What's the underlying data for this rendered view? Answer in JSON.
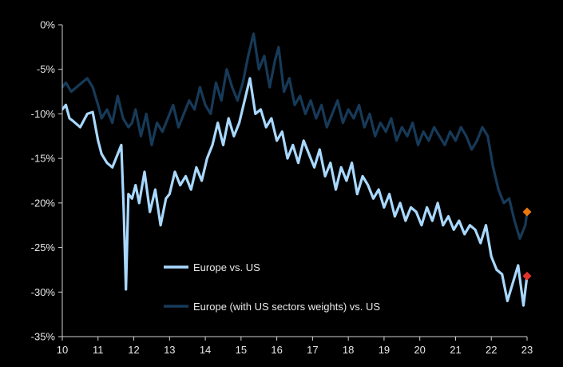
{
  "chart_data": {
    "type": "line",
    "title": "",
    "xlabel": "",
    "ylabel": "",
    "ylim": [
      -35,
      0
    ],
    "yticks": [
      0,
      -5,
      -10,
      -15,
      -20,
      -25,
      -30,
      -35
    ],
    "ytick_labels": [
      "0%",
      "-5%",
      "-10%",
      "-15%",
      "-20%",
      "-25%",
      "-30%",
      "-35%"
    ],
    "xlim": [
      10,
      23
    ],
    "xticks": [
      10,
      11,
      12,
      13,
      14,
      15,
      16,
      17,
      18,
      19,
      20,
      21,
      22,
      23
    ],
    "xtick_labels": [
      "10",
      "11",
      "12",
      "13",
      "14",
      "15",
      "16",
      "17",
      "18",
      "19",
      "20",
      "21",
      "22",
      "23"
    ],
    "grid": false,
    "legend_position": "bottom-center",
    "series": [
      {
        "name": "Europe vs. US",
        "color": "#a9d8ff",
        "x": [
          10.0,
          10.1,
          10.2,
          10.3,
          10.5,
          10.7,
          10.85,
          11.0,
          11.1,
          11.25,
          11.4,
          11.55,
          11.65,
          11.72,
          11.78,
          11.85,
          11.95,
          12.05,
          12.15,
          12.3,
          12.45,
          12.6,
          12.75,
          12.9,
          13.0,
          13.15,
          13.3,
          13.45,
          13.6,
          13.75,
          13.9,
          14.05,
          14.2,
          14.35,
          14.5,
          14.65,
          14.8,
          14.95,
          15.1,
          15.25,
          15.4,
          15.55,
          15.7,
          15.85,
          16.0,
          16.15,
          16.3,
          16.45,
          16.6,
          16.75,
          16.9,
          17.05,
          17.2,
          17.35,
          17.5,
          17.65,
          17.8,
          17.95,
          18.1,
          18.25,
          18.4,
          18.55,
          18.7,
          18.85,
          19.0,
          19.15,
          19.3,
          19.45,
          19.6,
          19.75,
          19.9,
          20.05,
          20.2,
          20.35,
          20.5,
          20.65,
          20.8,
          20.95,
          21.1,
          21.25,
          21.4,
          21.55,
          21.7,
          21.85,
          22.0,
          22.15,
          22.3,
          22.45,
          22.6,
          22.75,
          22.9,
          23.0
        ],
        "values": [
          -9.5,
          -9.0,
          -10.5,
          -10.8,
          -11.5,
          -10.0,
          -9.8,
          -13.0,
          -14.5,
          -15.5,
          -16.0,
          -14.5,
          -13.5,
          -21.0,
          -29.7,
          -19.0,
          -19.5,
          -18.0,
          -20.0,
          -16.5,
          -21.0,
          -18.5,
          -22.5,
          -19.5,
          -19.0,
          -16.5,
          -18.0,
          -17.0,
          -18.5,
          -16.0,
          -17.5,
          -15.0,
          -13.5,
          -11.0,
          -13.5,
          -10.5,
          -12.5,
          -11.0,
          -8.5,
          -6.0,
          -10.0,
          -9.5,
          -11.5,
          -10.5,
          -13.0,
          -12.0,
          -15.0,
          -13.5,
          -15.5,
          -13.0,
          -14.5,
          -16.0,
          -14.0,
          -17.0,
          -15.5,
          -18.5,
          -16.0,
          -17.5,
          -15.5,
          -19.0,
          -17.0,
          -18.0,
          -19.5,
          -18.5,
          -20.5,
          -19.0,
          -21.5,
          -20.0,
          -22.0,
          -20.5,
          -21.0,
          -22.5,
          -20.5,
          -22.0,
          -20.0,
          -22.5,
          -21.5,
          -23.0,
          -22.0,
          -23.5,
          -22.5,
          -23.0,
          -24.5,
          -22.5,
          -26.0,
          -27.5,
          -28.0,
          -31.0,
          -29.0,
          -27.0,
          -31.5,
          -28.2
        ]
      },
      {
        "name": "Europe (with US sectors weights) vs. US",
        "color": "#173a58",
        "x": [
          10.0,
          10.1,
          10.25,
          10.4,
          10.55,
          10.7,
          10.85,
          11.0,
          11.1,
          11.25,
          11.4,
          11.55,
          11.7,
          11.85,
          11.95,
          12.05,
          12.2,
          12.35,
          12.5,
          12.65,
          12.8,
          12.95,
          13.1,
          13.25,
          13.4,
          13.55,
          13.7,
          13.85,
          14.0,
          14.15,
          14.3,
          14.45,
          14.6,
          14.75,
          14.9,
          15.05,
          15.2,
          15.35,
          15.5,
          15.65,
          15.8,
          15.95,
          16.05,
          16.2,
          16.35,
          16.5,
          16.65,
          16.8,
          16.95,
          17.1,
          17.25,
          17.4,
          17.55,
          17.7,
          17.85,
          18.0,
          18.15,
          18.3,
          18.45,
          18.6,
          18.75,
          18.9,
          19.05,
          19.2,
          19.35,
          19.5,
          19.65,
          19.8,
          19.95,
          20.1,
          20.25,
          20.4,
          20.55,
          20.7,
          20.85,
          21.0,
          21.15,
          21.3,
          21.45,
          21.6,
          21.75,
          21.9,
          22.05,
          22.2,
          22.35,
          22.5,
          22.65,
          22.8,
          22.95,
          23.0
        ],
        "values": [
          -7.0,
          -6.5,
          -7.5,
          -7.0,
          -6.5,
          -6.0,
          -7.0,
          -9.0,
          -10.5,
          -9.5,
          -11.0,
          -8.0,
          -10.5,
          -11.5,
          -11.0,
          -9.5,
          -12.5,
          -10.0,
          -13.5,
          -11.0,
          -12.0,
          -10.5,
          -9.0,
          -11.5,
          -10.0,
          -8.5,
          -9.5,
          -7.0,
          -9.0,
          -10.0,
          -6.5,
          -8.5,
          -5.0,
          -7.0,
          -8.5,
          -6.5,
          -3.5,
          -1.0,
          -5.0,
          -3.5,
          -7.0,
          -4.0,
          -2.5,
          -7.5,
          -6.0,
          -9.0,
          -8.0,
          -10.0,
          -8.5,
          -10.5,
          -9.0,
          -11.5,
          -10.0,
          -8.5,
          -11.0,
          -9.5,
          -10.5,
          -9.0,
          -11.5,
          -10.0,
          -12.5,
          -11.0,
          -12.0,
          -10.5,
          -13.0,
          -11.5,
          -12.5,
          -11.0,
          -13.5,
          -12.0,
          -13.0,
          -11.5,
          -12.5,
          -13.5,
          -12.0,
          -13.0,
          -11.5,
          -12.5,
          -14.0,
          -13.0,
          -11.5,
          -12.5,
          -16.0,
          -18.5,
          -20.0,
          -19.5,
          -22.0,
          -24.0,
          -22.5,
          -21.0
        ]
      }
    ],
    "markers": [
      {
        "series": "Europe (with US sectors weights) vs. US",
        "x": 23.0,
        "y": -21.0,
        "shape": "diamond",
        "color": "#e8780c"
      },
      {
        "series": "Europe vs. US",
        "x": 23.0,
        "y": -28.2,
        "shape": "diamond",
        "color": "#e0342a"
      }
    ],
    "legend": [
      {
        "label": "Europe vs. US",
        "color": "#a9d8ff"
      },
      {
        "label": "Europe (with US sectors weights) vs. US",
        "color": "#173a58"
      }
    ]
  }
}
